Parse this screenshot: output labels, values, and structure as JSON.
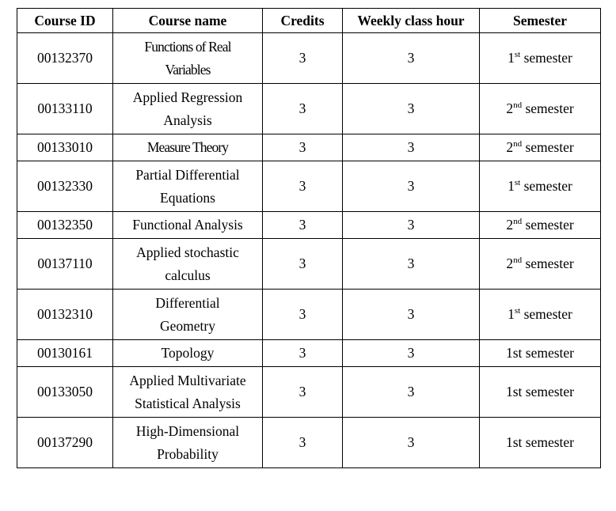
{
  "table": {
    "headers": {
      "course_id": "Course ID",
      "course_name": "Course name",
      "credits": "Credits",
      "weekly_class_hour": "Weekly class hour",
      "semester": "Semester"
    },
    "rows": [
      {
        "course_id": "00132370",
        "course_name": [
          "Functions of Real",
          "Variables"
        ],
        "credits": "3",
        "weekly_class_hour": "3",
        "semester_num": "1",
        "semester_sup": "st",
        "semester_word": " semester"
      },
      {
        "course_id": "00133110",
        "course_name": [
          "Applied Regression",
          "Analysis"
        ],
        "credits": "3",
        "weekly_class_hour": "3",
        "semester_num": "2",
        "semester_sup": "nd",
        "semester_word": " semester"
      },
      {
        "course_id": "00133010",
        "course_name": [
          "Measure Theory"
        ],
        "credits": "3",
        "weekly_class_hour": "3",
        "semester_num": "2",
        "semester_sup": "nd",
        "semester_word": " semester"
      },
      {
        "course_id": "00132330",
        "course_name": [
          "Partial Differential",
          "Equations"
        ],
        "credits": "3",
        "weekly_class_hour": "3",
        "semester_num": "1",
        "semester_sup": "st",
        "semester_word": " semester"
      },
      {
        "course_id": "00132350",
        "course_name": [
          "Functional Analysis"
        ],
        "credits": "3",
        "weekly_class_hour": "3",
        "semester_num": "2",
        "semester_sup": "nd",
        "semester_word": " semester"
      },
      {
        "course_id": "00137110",
        "course_name": [
          "Applied stochastic",
          "calculus"
        ],
        "credits": "3",
        "weekly_class_hour": "3",
        "semester_num": "2",
        "semester_sup": "nd",
        "semester_word": " semester"
      },
      {
        "course_id": "00132310",
        "course_name": [
          "Differential",
          "Geometry"
        ],
        "credits": "3",
        "weekly_class_hour": "3",
        "semester_num": "1",
        "semester_sup": "st",
        "semester_word": " semester"
      },
      {
        "course_id": "00130161",
        "course_name": [
          "Topology"
        ],
        "credits": "3",
        "weekly_class_hour": "3",
        "semester_num": "1st semester",
        "semester_sup": "",
        "semester_word": ""
      },
      {
        "course_id": "00133050",
        "course_name": [
          "Applied Multivariate",
          "Statistical Analysis"
        ],
        "credits": "3",
        "weekly_class_hour": "3",
        "semester_num": "1st semester",
        "semester_sup": "",
        "semester_word": ""
      },
      {
        "course_id": "00137290",
        "course_name": [
          "High-Dimensional",
          "Probability"
        ],
        "credits": "3",
        "weekly_class_hour": "3",
        "semester_num": "1st semester",
        "semester_sup": "",
        "semester_word": ""
      }
    ]
  }
}
